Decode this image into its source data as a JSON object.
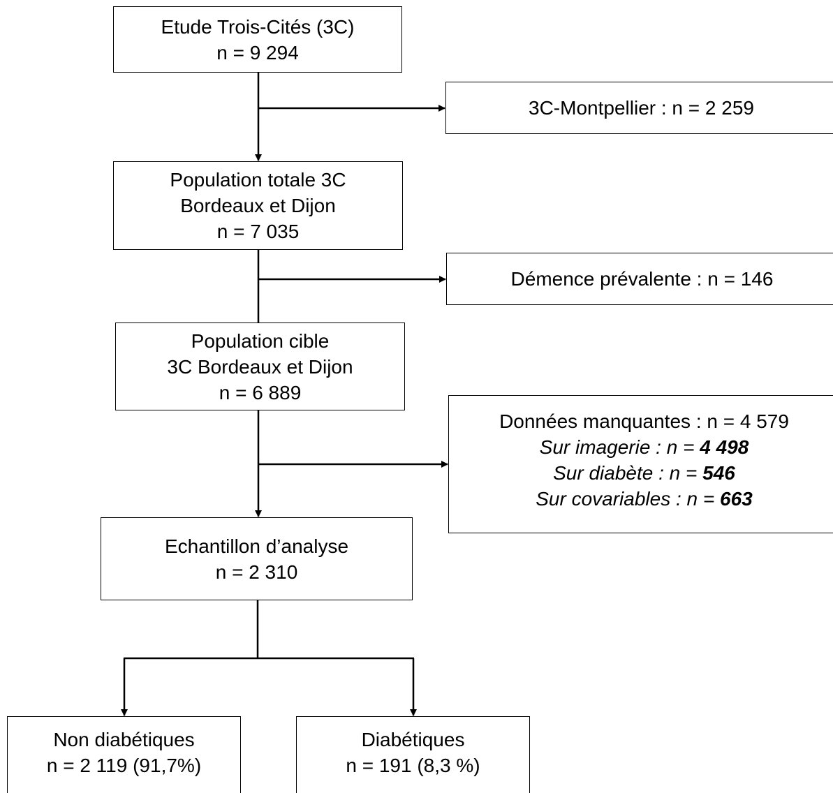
{
  "boxes": {
    "study": {
      "title": "Etude Trois-Cités (3C)",
      "count": "n = 9 294"
    },
    "montpellier": {
      "label": "3C-Montpellier : n = 2 259"
    },
    "total_population": {
      "line1": "Population totale 3C",
      "line2": "Bordeaux et Dijon",
      "count": "n = 7 035"
    },
    "dementia": {
      "label": "Démence prévalente :  n = 146"
    },
    "target_population": {
      "line1": "Population cible",
      "line2": "3C Bordeaux et Dijon",
      "count": "n = 6 889"
    },
    "missing_data": {
      "title": "Données manquantes : n = 4 579",
      "items": [
        {
          "label": "Sur imagerie : n = ",
          "value": "4 498"
        },
        {
          "label": "Sur diabète : n = ",
          "value": "546"
        },
        {
          "label": "Sur covariables : n = ",
          "value": "663"
        }
      ]
    },
    "analysis_sample": {
      "title": "Echantillon d’analyse",
      "count": "n = 2 310"
    },
    "non_diabetic": {
      "title": "Non diabétiques",
      "count": "n = 2 119 (91,7%)"
    },
    "diabetic": {
      "title": "Diabétiques",
      "count": "n = 191 (8,3 %)"
    }
  },
  "colors": {
    "stroke": "#000000",
    "background": "#ffffff"
  }
}
